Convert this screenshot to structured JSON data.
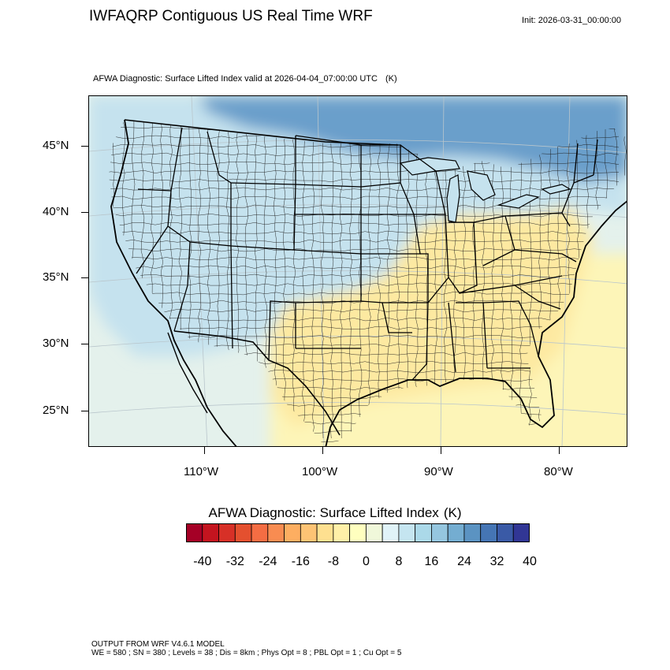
{
  "header": {
    "title": "IWFAQRP Contiguous US Real Time WRF",
    "init_time": "Init: 2026-03-31_00:00:00"
  },
  "map": {
    "field_title": "AFWA Diagnostic: Surface Lifted Index valid at 2026-04-04_07:00:00 UTC",
    "field_units": "(K)",
    "lat_labels": [
      "45°N",
      "40°N",
      "35°N",
      "30°N",
      "25°N"
    ],
    "lon_labels": [
      "110°W",
      "100°W",
      "90°W",
      "80°W"
    ],
    "colors": {
      "ocean_east": "#fdf5b8",
      "ocean_west": "#e4f1ec",
      "north_cool": "#6a9fcb",
      "land_cool": "#c5e2ee",
      "land_warm": "#fde9a1",
      "state_lines": "#000000"
    }
  },
  "colorbar": {
    "title": "AFWA Diagnostic: Surface Lifted Index",
    "units": "(K)",
    "tick_labels": [
      "-40",
      "-32",
      "-24",
      "-16",
      "-8",
      "0",
      "8",
      "16",
      "24",
      "32",
      "40"
    ],
    "colors": [
      "#a50026",
      "#c4141f",
      "#d73027",
      "#e4502f",
      "#f46d43",
      "#f88c51",
      "#fdae61",
      "#fdc374",
      "#fee090",
      "#fff0a8",
      "#ffffbf",
      "#f0f8da",
      "#e0f3f8",
      "#c5e5f0",
      "#abd9e9",
      "#95c6df",
      "#74add1",
      "#5b93c2",
      "#4575b4",
      "#3a5aa6",
      "#313695"
    ]
  },
  "footer": {
    "line1": "OUTPUT FROM WRF V4.6.1 MODEL",
    "line2": "WE = 580 ; SN = 380 ; Levels = 38 ; Dis = 8km ; Phys Opt = 8 ; PBL Opt = 1 ; Cu Opt = 5"
  }
}
